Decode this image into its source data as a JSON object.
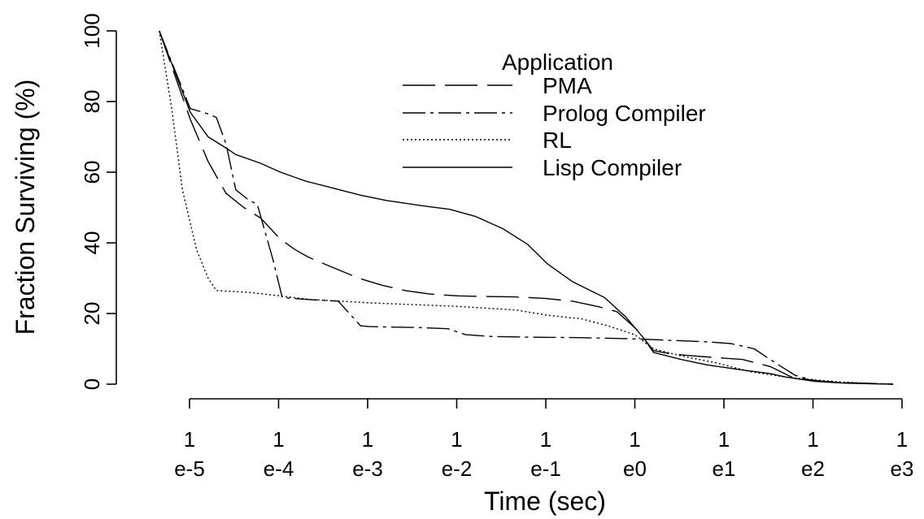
{
  "chart_data": {
    "type": "line",
    "xlabel": "Time (sec)",
    "ylabel": "Fraction Surviving (%)",
    "xscale": "log",
    "xlim": [
      "1e-5",
      "1e3"
    ],
    "ylim": [
      0,
      100
    ],
    "x_ticks": [
      {
        "value": "1e-5",
        "top": "1",
        "bottom": "e-5"
      },
      {
        "value": "1e-4",
        "top": "1",
        "bottom": "e-4"
      },
      {
        "value": "1e-3",
        "top": "1",
        "bottom": "e-3"
      },
      {
        "value": "1e-2",
        "top": "1",
        "bottom": "e-2"
      },
      {
        "value": "1e-1",
        "top": "1",
        "bottom": "e-1"
      },
      {
        "value": "1e0",
        "top": "1",
        "bottom": "e0"
      },
      {
        "value": "1e1",
        "top": "1",
        "bottom": "e1"
      },
      {
        "value": "1e2",
        "top": "1",
        "bottom": "e2"
      },
      {
        "value": "1e3",
        "top": "1",
        "bottom": "e3"
      }
    ],
    "y_ticks": [
      "0",
      "20",
      "40",
      "60",
      "80",
      "100"
    ],
    "grid": false,
    "legend": {
      "title": "Application",
      "placement": "top-right"
    },
    "series": [
      {
        "name": "PMA",
        "dash": "long-dash",
        "points": [
          [
            "4.57e-6",
            100
          ],
          [
            "1.02e-5",
            75
          ],
          [
            "1.62e-5",
            63
          ],
          [
            "2.57e-5",
            54
          ],
          [
            "4.07e-5",
            50
          ],
          [
            "6.31e-5",
            47
          ],
          [
            "1.05e-4",
            41
          ],
          [
            "1.55e-4",
            38
          ],
          [
            "2.14e-4",
            36
          ],
          [
            "4.07e-4",
            33
          ],
          [
            "7.94e-4",
            30
          ],
          [
            "1.45e-3",
            28
          ],
          [
            "2.63e-3",
            26.5
          ],
          [
            "5.01e-3",
            25.5
          ],
          [
            "1.05e-2",
            25
          ],
          [
            "2.19e-2",
            24.8
          ],
          [
            "4.57e-2",
            24.7
          ],
          [
            "9.55e-2",
            24.3
          ],
          [
            "2.00e-1",
            23.5
          ],
          [
            "3.80e-1",
            22
          ],
          [
            "6.31e-1",
            20.5
          ],
          [
            "1.05",
            15.5
          ],
          [
            "1.62",
            9.5
          ],
          [
            "2.63",
            8.5
          ],
          [
            "4.57",
            8
          ],
          [
            "8.32",
            7.5
          ],
          [
            "1.62e1",
            7
          ],
          [
            "3.31e1",
            5
          ],
          [
            "5.75e1",
            2
          ],
          [
            "1.05e2",
            1
          ],
          [
            "2.19e2",
            0.4
          ],
          [
            "4.57e2",
            0.2
          ],
          [
            "7.94e2",
            0
          ]
        ]
      },
      {
        "name": "Prolog Compiler",
        "dash": "dash-dot",
        "points": [
          [
            "4.57e-6",
            100
          ],
          [
            "1.02e-5",
            78
          ],
          [
            "1.62e-5",
            76.5
          ],
          [
            "2.00e-5",
            75.5
          ],
          [
            "2.57e-5",
            68
          ],
          [
            "3.31e-5",
            55
          ],
          [
            "4.68e-5",
            52
          ],
          [
            "5.75e-5",
            51
          ],
          [
            "8.71e-5",
            35
          ],
          [
            "1.10e-4",
            24.5
          ],
          [
            "2.00e-4",
            24
          ],
          [
            "4.68e-4",
            23.5
          ],
          [
            "8.32e-4",
            16.5
          ],
          [
            "1.05e-3",
            16.3
          ],
          [
            "3.98e-3",
            16
          ],
          [
            "7.94e-3",
            15.7
          ],
          [
            "1.26e-2",
            14
          ],
          [
            "2.51e-2",
            13.5
          ],
          [
            "6.31e-2",
            13.3
          ],
          [
            "2.00e-1",
            13.2
          ],
          [
            "5.01e-1",
            13
          ],
          [
            "1.05",
            12.8
          ],
          [
            "2.00",
            12.5
          ],
          [
            "6.31",
            12
          ],
          [
            "1.20e1",
            11.5
          ],
          [
            "2.19e1",
            10
          ],
          [
            "3.80e1",
            6
          ],
          [
            "6.31e1",
            2.5
          ],
          [
            "1.05e2",
            1
          ],
          [
            "2.19e2",
            0.4
          ],
          [
            "4.57e2",
            0.2
          ],
          [
            "7.94e2",
            0
          ]
        ]
      },
      {
        "name": "RL",
        "dash": "dotted",
        "points": [
          [
            "4.57e-6",
            100
          ],
          [
            "6.31e-6",
            78
          ],
          [
            "8.32e-6",
            55
          ],
          [
            "1.20e-5",
            38
          ],
          [
            "1.62e-5",
            30
          ],
          [
            "2.00e-5",
            26.5
          ],
          [
            "4.57e-5",
            26
          ],
          [
            "1.05e-4",
            25
          ],
          [
            "2.19e-4",
            24
          ],
          [
            "5.01e-4",
            23.5
          ],
          [
            "1.05e-3",
            23
          ],
          [
            "3.31e-3",
            22.5
          ],
          [
            "1.05e-2",
            22
          ],
          [
            "2.19e-2",
            21.5
          ],
          [
            "4.57e-2",
            21
          ],
          [
            "1.05e-1",
            19.5
          ],
          [
            "2.51e-1",
            18.5
          ],
          [
            "5.01e-1",
            16.5
          ],
          [
            "1.00",
            14
          ],
          [
            "1.62",
            10
          ],
          [
            "3.31",
            8
          ],
          [
            "8.32",
            6
          ],
          [
            "2.00e1",
            3.5
          ],
          [
            "5.01e1",
            2
          ],
          [
            "1.05e2",
            1.2
          ],
          [
            "2.19e2",
            0.6
          ],
          [
            "4.57e2",
            0.2
          ],
          [
            "7.94e2",
            0
          ]
        ]
      },
      {
        "name": "Lisp Compiler",
        "dash": "solid",
        "points": [
          [
            "4.57e-6",
            100
          ],
          [
            "1.02e-5",
            77
          ],
          [
            "1.62e-5",
            70
          ],
          [
            "2.51e-5",
            67
          ],
          [
            "3.31e-5",
            65
          ],
          [
            "6.31e-5",
            62.5
          ],
          [
            "1.05e-4",
            60
          ],
          [
            "2.00e-4",
            57.5
          ],
          [
            "4.07e-4",
            55.5
          ],
          [
            "8.32e-4",
            53.5
          ],
          [
            "1.62e-3",
            52
          ],
          [
            "4.07e-3",
            50.5
          ],
          [
            "8.32e-3",
            49.5
          ],
          [
            "1.62e-2",
            47.5
          ],
          [
            "3.31e-2",
            44
          ],
          [
            "6.31e-2",
            39.5
          ],
          [
            "1.05e-1",
            34
          ],
          [
            "2.00e-1",
            29
          ],
          [
            "4.57e-1",
            24.5
          ],
          [
            "7.94e-1",
            19
          ],
          [
            "1.26",
            13
          ],
          [
            "1.62",
            9
          ],
          [
            "3.31",
            7
          ],
          [
            "6.31",
            5.5
          ],
          [
            "1.62e1",
            4
          ],
          [
            "3.31e1",
            3
          ],
          [
            "5.01e1",
            2
          ],
          [
            "1.05e2",
            0.8
          ],
          [
            "2.19e2",
            0.3
          ],
          [
            "4.57e2",
            0.1
          ],
          [
            "7.94e2",
            0
          ]
        ]
      }
    ]
  }
}
